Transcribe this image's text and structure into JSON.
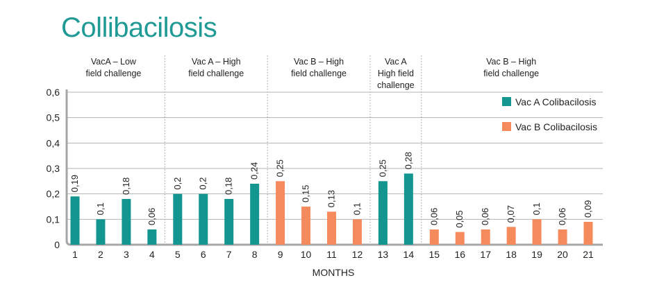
{
  "chart_data": {
    "type": "bar",
    "title": "Collibacilosis",
    "xlabel": "MONTHS",
    "ylabel": "",
    "ylim": [
      0,
      0.6
    ],
    "yticks": [
      "0",
      "0,1",
      "0,2",
      "0,3",
      "0,4",
      "0,5",
      "0,6"
    ],
    "grid": true,
    "legend_position": "right",
    "categories": [
      "1",
      "2",
      "3",
      "4",
      "5",
      "6",
      "7",
      "8",
      "9",
      "10",
      "11",
      "12",
      "13",
      "14",
      "15",
      "16",
      "17",
      "18",
      "19",
      "20",
      "21"
    ],
    "values": [
      0.19,
      0.1,
      0.18,
      0.06,
      0.2,
      0.2,
      0.18,
      0.24,
      0.25,
      0.15,
      0.13,
      0.1,
      0.25,
      0.28,
      0.06,
      0.05,
      0.06,
      0.07,
      0.1,
      0.06,
      0.09
    ],
    "value_labels": [
      "0,19",
      "0,1",
      "0,18",
      "0,06",
      "0,2",
      "0,2",
      "0,18",
      "0,24",
      "0,25",
      "0,15",
      "0,13",
      "0,1",
      "0,25",
      "0,28",
      "0,06",
      "0,05",
      "0,06",
      "0,07",
      "0,1",
      "0,06",
      "0,09"
    ],
    "bar_series": [
      "A",
      "A",
      "A",
      "A",
      "A",
      "A",
      "A",
      "A",
      "B",
      "B",
      "B",
      "B",
      "A",
      "A",
      "B",
      "B",
      "B",
      "B",
      "B",
      "B",
      "B"
    ],
    "series": [
      {
        "key": "A",
        "name": "Vac A Colibacilosis",
        "color": "#12968f"
      },
      {
        "key": "B",
        "name": "Vac B Colibacilosis",
        "color": "#f58a5c"
      }
    ],
    "segments": [
      {
        "lines": [
          "VacA – Low",
          "field challenge"
        ],
        "from": 1,
        "to": 4
      },
      {
        "lines": [
          "Vac A – High",
          "field challenge"
        ],
        "from": 5,
        "to": 8
      },
      {
        "lines": [
          "Vac B – High",
          "field challenge"
        ],
        "from": 9,
        "to": 12
      },
      {
        "lines": [
          "Vac A",
          "High field",
          "challenge"
        ],
        "from": 13,
        "to": 14
      },
      {
        "lines": [
          "Vac B – High",
          "field challenge"
        ],
        "from": 15,
        "to": 21
      }
    ]
  }
}
